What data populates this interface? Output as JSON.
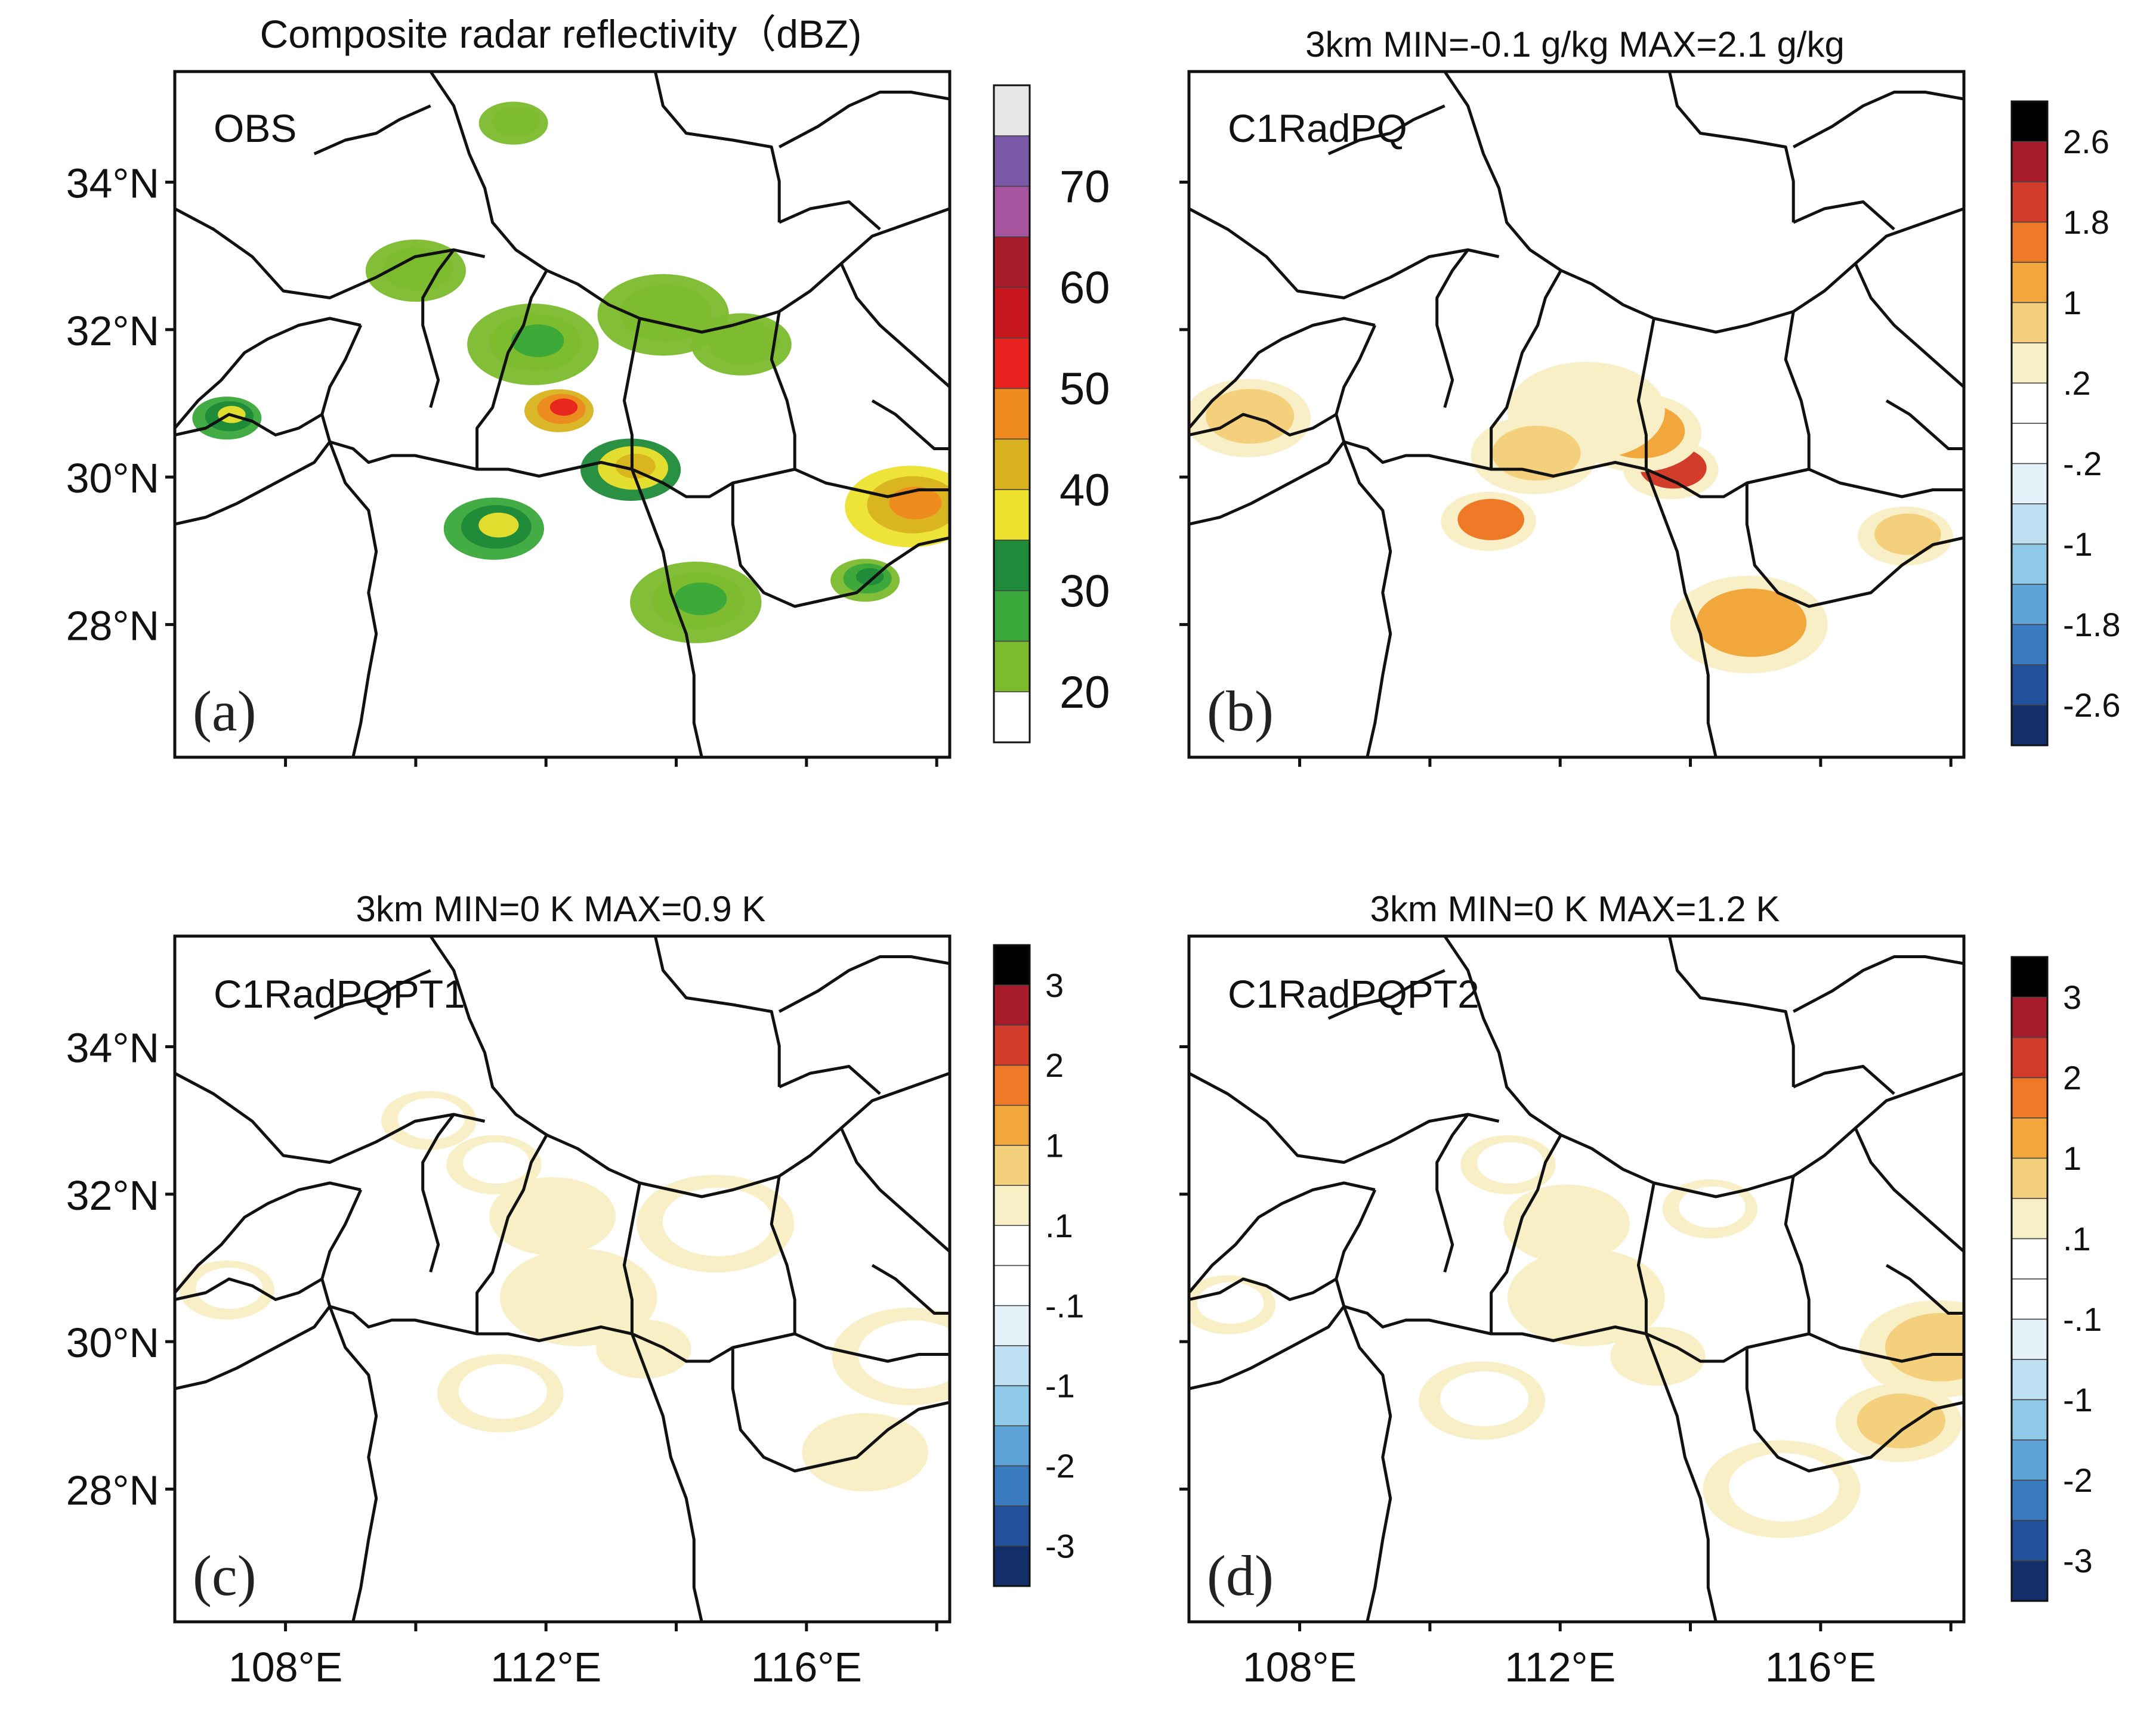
{
  "chart_data": [
    {
      "type": "heatmap",
      "id": "a",
      "title": "Composite radar reflectivity（dBZ)",
      "panel_label": "(a)",
      "experiment": "OBS",
      "field": "composite radar reflectivity",
      "units": "dBZ",
      "x_range_degE": [
        106.3,
        118.2
      ],
      "y_range_degN": [
        26.2,
        35.5
      ],
      "x_ticks": [
        "108°E",
        "112°E",
        "116°E"
      ],
      "y_ticks": [
        "34°N",
        "32°N",
        "30°N",
        "28°N"
      ],
      "colorbar": {
        "labels": [
          "70",
          "60",
          "50",
          "40",
          "30",
          "20"
        ],
        "colors": [
          "#e6e6e6",
          "#7a5aa6",
          "#a855a0",
          "#a81b2a",
          "#c8161e",
          "#e8231f",
          "#ee8a1e",
          "#d8b21e",
          "#ece22e",
          "#1f8a3a",
          "#3aa83a",
          "#7cba2e",
          "#ffffff"
        ]
      },
      "features": [
        {
          "lon": 112.2,
          "lat": 30.9,
          "value": 55
        },
        {
          "lon": 113.3,
          "lat": 30.1,
          "value": 45
        },
        {
          "lon": 117.6,
          "lat": 29.6,
          "value": 50
        },
        {
          "lon": 107.1,
          "lat": 30.8,
          "value": 40
        },
        {
          "lon": 111.2,
          "lat": 29.3,
          "value": 40
        },
        {
          "lon": 111.8,
          "lat": 31.8,
          "value": 30
        },
        {
          "lon": 116.9,
          "lat": 28.6,
          "value": 35
        },
        {
          "lon": 110.0,
          "lat": 32.8,
          "value": 25
        },
        {
          "lon": 113.8,
          "lat": 32.2,
          "value": 25
        },
        {
          "lon": 111.5,
          "lat": 34.8,
          "value": 22
        },
        {
          "lon": 115.0,
          "lat": 31.8,
          "value": 22
        },
        {
          "lon": 114.3,
          "lat": 28.3,
          "value": 30
        }
      ]
    },
    {
      "type": "heatmap",
      "id": "b",
      "title": "3km MIN=-0.1 g/kg  MAX=2.1 g/kg",
      "panel_label": "(b)",
      "experiment": "C1RadPQ",
      "level": "3km",
      "min": -0.1,
      "max": 2.1,
      "units": "g/kg",
      "x_range_degE": [
        106.3,
        118.2
      ],
      "y_range_degN": [
        26.2,
        35.5
      ],
      "x_ticks": [
        "108°E",
        "112°E",
        "116°E"
      ],
      "y_ticks": [
        "34°N",
        "32°N",
        "30°N",
        "28°N"
      ],
      "colorbar": {
        "labels": [
          "2.6",
          "1.8",
          "1",
          ".2",
          "-.2",
          "-1",
          "-1.8",
          "-2.6"
        ],
        "colors": [
          "#000000",
          "#a81b2a",
          "#d23c2a",
          "#ee7a28",
          "#f2a73c",
          "#f4cf7c",
          "#f8efc6",
          "#ffffff",
          "#ffffff",
          "#e6f2fa",
          "#bfe0f3",
          "#8ec9ea",
          "#5fa4d6",
          "#3a7bbf",
          "#22509a",
          "#132f6a"
        ]
      },
      "features": [
        {
          "lon": 113.7,
          "lat": 30.1,
          "value": 1.9
        },
        {
          "lon": 113.2,
          "lat": 30.6,
          "value": 1.2
        },
        {
          "lon": 112.4,
          "lat": 30.9,
          "value": 0.4
        },
        {
          "lon": 110.9,
          "lat": 29.4,
          "value": 1.5
        },
        {
          "lon": 111.6,
          "lat": 30.3,
          "value": 1.1
        },
        {
          "lon": 114.9,
          "lat": 28.0,
          "value": 1.4
        },
        {
          "lon": 117.3,
          "lat": 29.2,
          "value": 0.8
        },
        {
          "lon": 107.2,
          "lat": 30.8,
          "value": 0.8
        }
      ]
    },
    {
      "type": "heatmap",
      "id": "c",
      "title": "3km MIN=0 K  MAX=0.9 K",
      "panel_label": "(c)",
      "experiment": "C1RadPQPT1",
      "level": "3km",
      "min": 0,
      "max": 0.9,
      "units": "K",
      "x_range_degE": [
        106.3,
        118.2
      ],
      "y_range_degN": [
        26.2,
        35.5
      ],
      "x_ticks": [
        "108°E",
        "112°E",
        "116°E"
      ],
      "y_ticks": [
        "34°N",
        "32°N",
        "30°N",
        "28°N"
      ],
      "colorbar": {
        "labels": [
          "3",
          "2",
          "1",
          ".1",
          "-.1",
          "-1",
          "-2",
          "-3"
        ],
        "colors": [
          "#000000",
          "#a81b2a",
          "#d23c2a",
          "#ee7a28",
          "#f2a73c",
          "#f4cf7c",
          "#f8efc6",
          "#ffffff",
          "#ffffff",
          "#e6f2fa",
          "#bfe0f3",
          "#8ec9ea",
          "#5fa4d6",
          "#3a7bbf",
          "#22509a",
          "#132f6a"
        ]
      },
      "features": [
        {
          "lon": 111.2,
          "lat": 32.4,
          "value": 0.3
        },
        {
          "lon": 112.1,
          "lat": 31.7,
          "value": 0.6
        },
        {
          "lon": 112.5,
          "lat": 30.6,
          "value": 0.5
        },
        {
          "lon": 113.5,
          "lat": 29.9,
          "value": 0.8
        },
        {
          "lon": 116.9,
          "lat": 28.5,
          "value": 0.5
        },
        {
          "lon": 117.6,
          "lat": 29.8,
          "value": 0.3
        },
        {
          "lon": 107.1,
          "lat": 30.7,
          "value": 0.2
        },
        {
          "lon": 111.3,
          "lat": 29.3,
          "value": 0.2
        },
        {
          "lon": 114.6,
          "lat": 31.6,
          "value": 0.15
        },
        {
          "lon": 110.2,
          "lat": 33.0,
          "value": 0.15
        }
      ]
    },
    {
      "type": "heatmap",
      "id": "d",
      "title": "3km MIN=0 K  MAX=1.2 K",
      "panel_label": "(d)",
      "experiment": "C1RadPQPT2",
      "level": "3km",
      "min": 0,
      "max": 1.2,
      "units": "K",
      "x_range_degE": [
        106.3,
        118.2
      ],
      "y_range_degN": [
        26.2,
        35.5
      ],
      "x_ticks": [
        "108°E",
        "112°E",
        "116°E"
      ],
      "y_ticks": [
        "34°N",
        "32°N",
        "30°N",
        "28°N"
      ],
      "colorbar": {
        "labels": [
          "3",
          "2",
          "1",
          ".1",
          "-.1",
          "-1",
          "-2",
          "-3"
        ],
        "colors": [
          "#000000",
          "#a81b2a",
          "#d23c2a",
          "#ee7a28",
          "#f2a73c",
          "#f4cf7c",
          "#f8efc6",
          "#ffffff",
          "#ffffff",
          "#e6f2fa",
          "#bfe0f3",
          "#8ec9ea",
          "#5fa4d6",
          "#3a7bbf",
          "#22509a",
          "#132f6a"
        ]
      },
      "features": [
        {
          "lon": 111.2,
          "lat": 32.4,
          "value": 0.4
        },
        {
          "lon": 112.1,
          "lat": 31.6,
          "value": 0.7
        },
        {
          "lon": 112.4,
          "lat": 30.6,
          "value": 0.6
        },
        {
          "lon": 113.5,
          "lat": 29.8,
          "value": 0.8
        },
        {
          "lon": 117.2,
          "lat": 28.9,
          "value": 1.0
        },
        {
          "lon": 117.8,
          "lat": 29.9,
          "value": 0.9
        },
        {
          "lon": 106.9,
          "lat": 30.5,
          "value": 0.3
        },
        {
          "lon": 110.8,
          "lat": 29.2,
          "value": 0.2
        },
        {
          "lon": 115.4,
          "lat": 28.0,
          "value": 0.2
        },
        {
          "lon": 114.3,
          "lat": 31.8,
          "value": 0.2
        }
      ]
    }
  ]
}
